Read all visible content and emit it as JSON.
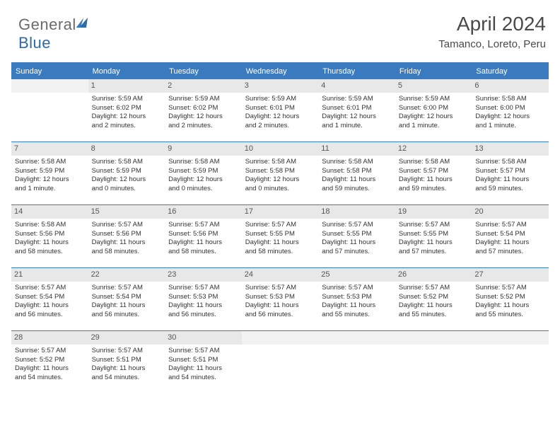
{
  "brand": {
    "part1": "General",
    "part2": "Blue"
  },
  "title": "April 2024",
  "location": "Tamanco, Loreto, Peru",
  "colors": {
    "header_bg": "#3a7bbf",
    "daynum_bg": "#e8e8e8",
    "text": "#333333",
    "title_text": "#4a4a4a"
  },
  "weekdays": [
    "Sunday",
    "Monday",
    "Tuesday",
    "Wednesday",
    "Thursday",
    "Friday",
    "Saturday"
  ],
  "weeks": [
    [
      {
        "num": "",
        "sunrise": "",
        "sunset": "",
        "daylight1": "",
        "daylight2": ""
      },
      {
        "num": "1",
        "sunrise": "Sunrise: 5:59 AM",
        "sunset": "Sunset: 6:02 PM",
        "daylight1": "Daylight: 12 hours",
        "daylight2": "and 2 minutes."
      },
      {
        "num": "2",
        "sunrise": "Sunrise: 5:59 AM",
        "sunset": "Sunset: 6:02 PM",
        "daylight1": "Daylight: 12 hours",
        "daylight2": "and 2 minutes."
      },
      {
        "num": "3",
        "sunrise": "Sunrise: 5:59 AM",
        "sunset": "Sunset: 6:01 PM",
        "daylight1": "Daylight: 12 hours",
        "daylight2": "and 2 minutes."
      },
      {
        "num": "4",
        "sunrise": "Sunrise: 5:59 AM",
        "sunset": "Sunset: 6:01 PM",
        "daylight1": "Daylight: 12 hours",
        "daylight2": "and 1 minute."
      },
      {
        "num": "5",
        "sunrise": "Sunrise: 5:59 AM",
        "sunset": "Sunset: 6:00 PM",
        "daylight1": "Daylight: 12 hours",
        "daylight2": "and 1 minute."
      },
      {
        "num": "6",
        "sunrise": "Sunrise: 5:58 AM",
        "sunset": "Sunset: 6:00 PM",
        "daylight1": "Daylight: 12 hours",
        "daylight2": "and 1 minute."
      }
    ],
    [
      {
        "num": "7",
        "sunrise": "Sunrise: 5:58 AM",
        "sunset": "Sunset: 5:59 PM",
        "daylight1": "Daylight: 12 hours",
        "daylight2": "and 1 minute."
      },
      {
        "num": "8",
        "sunrise": "Sunrise: 5:58 AM",
        "sunset": "Sunset: 5:59 PM",
        "daylight1": "Daylight: 12 hours",
        "daylight2": "and 0 minutes."
      },
      {
        "num": "9",
        "sunrise": "Sunrise: 5:58 AM",
        "sunset": "Sunset: 5:59 PM",
        "daylight1": "Daylight: 12 hours",
        "daylight2": "and 0 minutes."
      },
      {
        "num": "10",
        "sunrise": "Sunrise: 5:58 AM",
        "sunset": "Sunset: 5:58 PM",
        "daylight1": "Daylight: 12 hours",
        "daylight2": "and 0 minutes."
      },
      {
        "num": "11",
        "sunrise": "Sunrise: 5:58 AM",
        "sunset": "Sunset: 5:58 PM",
        "daylight1": "Daylight: 11 hours",
        "daylight2": "and 59 minutes."
      },
      {
        "num": "12",
        "sunrise": "Sunrise: 5:58 AM",
        "sunset": "Sunset: 5:57 PM",
        "daylight1": "Daylight: 11 hours",
        "daylight2": "and 59 minutes."
      },
      {
        "num": "13",
        "sunrise": "Sunrise: 5:58 AM",
        "sunset": "Sunset: 5:57 PM",
        "daylight1": "Daylight: 11 hours",
        "daylight2": "and 59 minutes."
      }
    ],
    [
      {
        "num": "14",
        "sunrise": "Sunrise: 5:58 AM",
        "sunset": "Sunset: 5:56 PM",
        "daylight1": "Daylight: 11 hours",
        "daylight2": "and 58 minutes."
      },
      {
        "num": "15",
        "sunrise": "Sunrise: 5:57 AM",
        "sunset": "Sunset: 5:56 PM",
        "daylight1": "Daylight: 11 hours",
        "daylight2": "and 58 minutes."
      },
      {
        "num": "16",
        "sunrise": "Sunrise: 5:57 AM",
        "sunset": "Sunset: 5:56 PM",
        "daylight1": "Daylight: 11 hours",
        "daylight2": "and 58 minutes."
      },
      {
        "num": "17",
        "sunrise": "Sunrise: 5:57 AM",
        "sunset": "Sunset: 5:55 PM",
        "daylight1": "Daylight: 11 hours",
        "daylight2": "and 58 minutes."
      },
      {
        "num": "18",
        "sunrise": "Sunrise: 5:57 AM",
        "sunset": "Sunset: 5:55 PM",
        "daylight1": "Daylight: 11 hours",
        "daylight2": "and 57 minutes."
      },
      {
        "num": "19",
        "sunrise": "Sunrise: 5:57 AM",
        "sunset": "Sunset: 5:55 PM",
        "daylight1": "Daylight: 11 hours",
        "daylight2": "and 57 minutes."
      },
      {
        "num": "20",
        "sunrise": "Sunrise: 5:57 AM",
        "sunset": "Sunset: 5:54 PM",
        "daylight1": "Daylight: 11 hours",
        "daylight2": "and 57 minutes."
      }
    ],
    [
      {
        "num": "21",
        "sunrise": "Sunrise: 5:57 AM",
        "sunset": "Sunset: 5:54 PM",
        "daylight1": "Daylight: 11 hours",
        "daylight2": "and 56 minutes."
      },
      {
        "num": "22",
        "sunrise": "Sunrise: 5:57 AM",
        "sunset": "Sunset: 5:54 PM",
        "daylight1": "Daylight: 11 hours",
        "daylight2": "and 56 minutes."
      },
      {
        "num": "23",
        "sunrise": "Sunrise: 5:57 AM",
        "sunset": "Sunset: 5:53 PM",
        "daylight1": "Daylight: 11 hours",
        "daylight2": "and 56 minutes."
      },
      {
        "num": "24",
        "sunrise": "Sunrise: 5:57 AM",
        "sunset": "Sunset: 5:53 PM",
        "daylight1": "Daylight: 11 hours",
        "daylight2": "and 56 minutes."
      },
      {
        "num": "25",
        "sunrise": "Sunrise: 5:57 AM",
        "sunset": "Sunset: 5:53 PM",
        "daylight1": "Daylight: 11 hours",
        "daylight2": "and 55 minutes."
      },
      {
        "num": "26",
        "sunrise": "Sunrise: 5:57 AM",
        "sunset": "Sunset: 5:52 PM",
        "daylight1": "Daylight: 11 hours",
        "daylight2": "and 55 minutes."
      },
      {
        "num": "27",
        "sunrise": "Sunrise: 5:57 AM",
        "sunset": "Sunset: 5:52 PM",
        "daylight1": "Daylight: 11 hours",
        "daylight2": "and 55 minutes."
      }
    ],
    [
      {
        "num": "28",
        "sunrise": "Sunrise: 5:57 AM",
        "sunset": "Sunset: 5:52 PM",
        "daylight1": "Daylight: 11 hours",
        "daylight2": "and 54 minutes."
      },
      {
        "num": "29",
        "sunrise": "Sunrise: 5:57 AM",
        "sunset": "Sunset: 5:51 PM",
        "daylight1": "Daylight: 11 hours",
        "daylight2": "and 54 minutes."
      },
      {
        "num": "30",
        "sunrise": "Sunrise: 5:57 AM",
        "sunset": "Sunset: 5:51 PM",
        "daylight1": "Daylight: 11 hours",
        "daylight2": "and 54 minutes."
      },
      {
        "num": "",
        "sunrise": "",
        "sunset": "",
        "daylight1": "",
        "daylight2": ""
      },
      {
        "num": "",
        "sunrise": "",
        "sunset": "",
        "daylight1": "",
        "daylight2": ""
      },
      {
        "num": "",
        "sunrise": "",
        "sunset": "",
        "daylight1": "",
        "daylight2": ""
      },
      {
        "num": "",
        "sunrise": "",
        "sunset": "",
        "daylight1": "",
        "daylight2": ""
      }
    ]
  ]
}
